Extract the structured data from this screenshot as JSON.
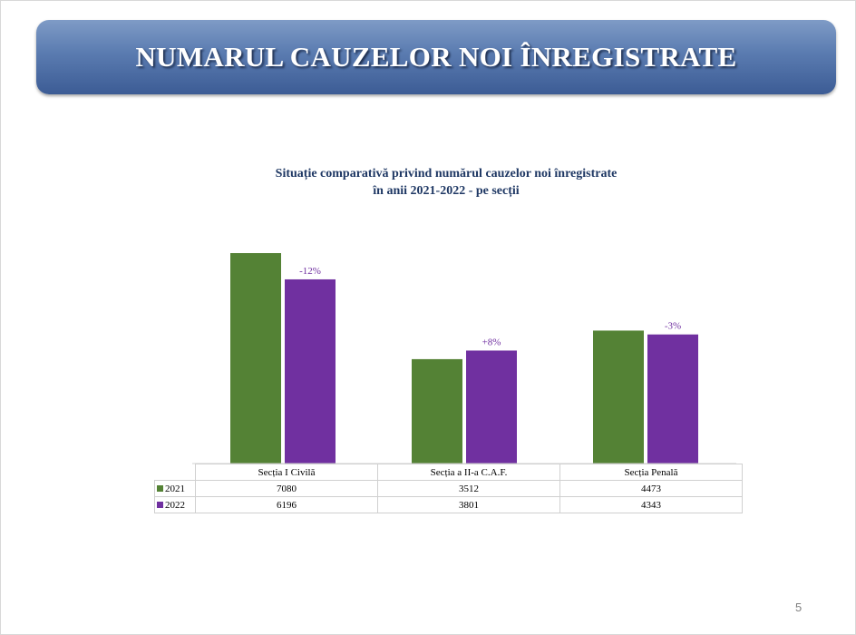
{
  "header": {
    "title": "NUMARUL CAUZELOR NOI ÎNREGISTRATE"
  },
  "chart_title": {
    "line1": "Situație comparativă privind numărul cauzelor noi înregistrate",
    "line2": "în anii 2021-2022 - pe secții"
  },
  "colors": {
    "s2021": "#548235",
    "s2022": "#7030a0",
    "label": "#7030a0",
    "title": "#1f3864"
  },
  "chart_data": {
    "type": "bar",
    "title": "Situație comparativă privind numărul cauzelor noi înregistrate în anii 2021-2022 - pe secții",
    "categories": [
      "Secția I Civilă",
      "Secția a II-a C.A.F.",
      "Secția Penală"
    ],
    "series": [
      {
        "name": "2021",
        "values": [
          7080,
          3512,
          4473
        ]
      },
      {
        "name": "2022",
        "values": [
          6196,
          3801,
          4343
        ]
      }
    ],
    "change_labels": [
      "-12%",
      "+8%",
      "-3%"
    ],
    "ylim": [
      0,
      7080
    ],
    "grid": false,
    "legend": "data-table"
  },
  "page_number": "5"
}
